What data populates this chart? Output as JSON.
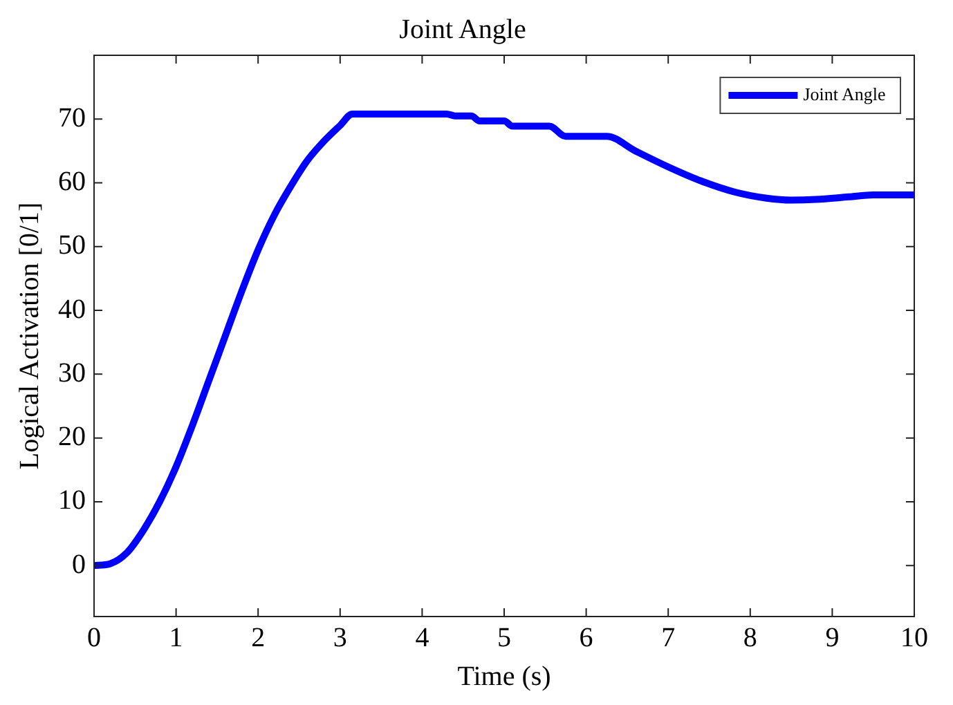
{
  "chart_data": {
    "type": "line",
    "title": "Joint Angle",
    "xlabel": "Time (s)",
    "ylabel": "Logical Activation [0/1]",
    "x": [
      0,
      0.2,
      0.4,
      0.6,
      0.8,
      1,
      1.2,
      1.4,
      1.6,
      1.8,
      2,
      2.2,
      2.4,
      2.6,
      2.8,
      3,
      3.15,
      4.3,
      4.4,
      4.6,
      4.7,
      5,
      5.1,
      5.55,
      5.75,
      6.25,
      6.6,
      7,
      7.4,
      7.8,
      8.2,
      8.5,
      8.8,
      9.2,
      9.5,
      10
    ],
    "series": [
      {
        "name": "Joint Angle",
        "color": "#0000ff",
        "values": [
          0,
          0.3,
          2,
          5.5,
          10,
          15.5,
          22,
          29,
          36,
          43,
          49.5,
          55,
          59.5,
          63.5,
          66.5,
          69,
          70.8,
          70.8,
          70.5,
          70.5,
          69.7,
          69.7,
          68.9,
          68.9,
          67.3,
          67.3,
          65,
          62.5,
          60.3,
          58.6,
          57.6,
          57.3,
          57.4,
          57.8,
          58.1,
          58.1
        ]
      }
    ],
    "xlim": [
      0,
      10
    ],
    "xticks": [
      0,
      1,
      2,
      3,
      4,
      5,
      6,
      7,
      8,
      9,
      10
    ],
    "ylim": [
      -8,
      80
    ],
    "yticks": [
      0,
      10,
      20,
      30,
      40,
      50,
      60,
      70
    ],
    "legend": "top right",
    "marker": "none",
    "line_style": "solid"
  }
}
